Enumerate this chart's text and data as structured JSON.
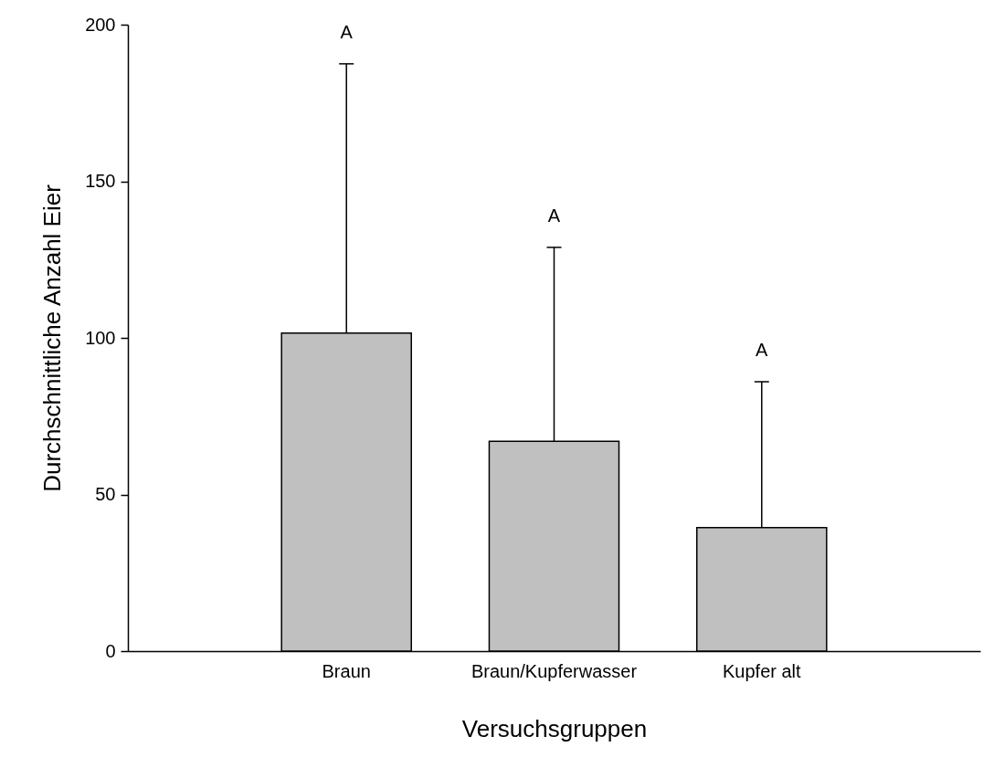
{
  "chart_data": {
    "type": "bar",
    "xlabel": "Versuchsgruppen",
    "ylabel": "Durchschnittliche Anzahl Eier",
    "categories": [
      "Braun",
      "Braun/Kupferwasser",
      "Kupfer alt"
    ],
    "values": [
      101.5,
      67,
      39.4
    ],
    "errors": [
      [
        101.5,
        187.5
      ],
      [
        67,
        128.9
      ],
      [
        39.4,
        86
      ]
    ],
    "color": "#c0c0c0",
    "ylim": [
      0,
      200
    ],
    "yticks": [
      0,
      50,
      100,
      150,
      200
    ],
    "grid": false,
    "annotations": [
      {
        "text": "A",
        "x": "Braun",
        "y": 187.5
      },
      {
        "text": "A",
        "x": "Braun/Kupferwasser",
        "y": 128.9
      },
      {
        "text": "A",
        "x": "Kupfer alt",
        "y": 86
      }
    ]
  }
}
